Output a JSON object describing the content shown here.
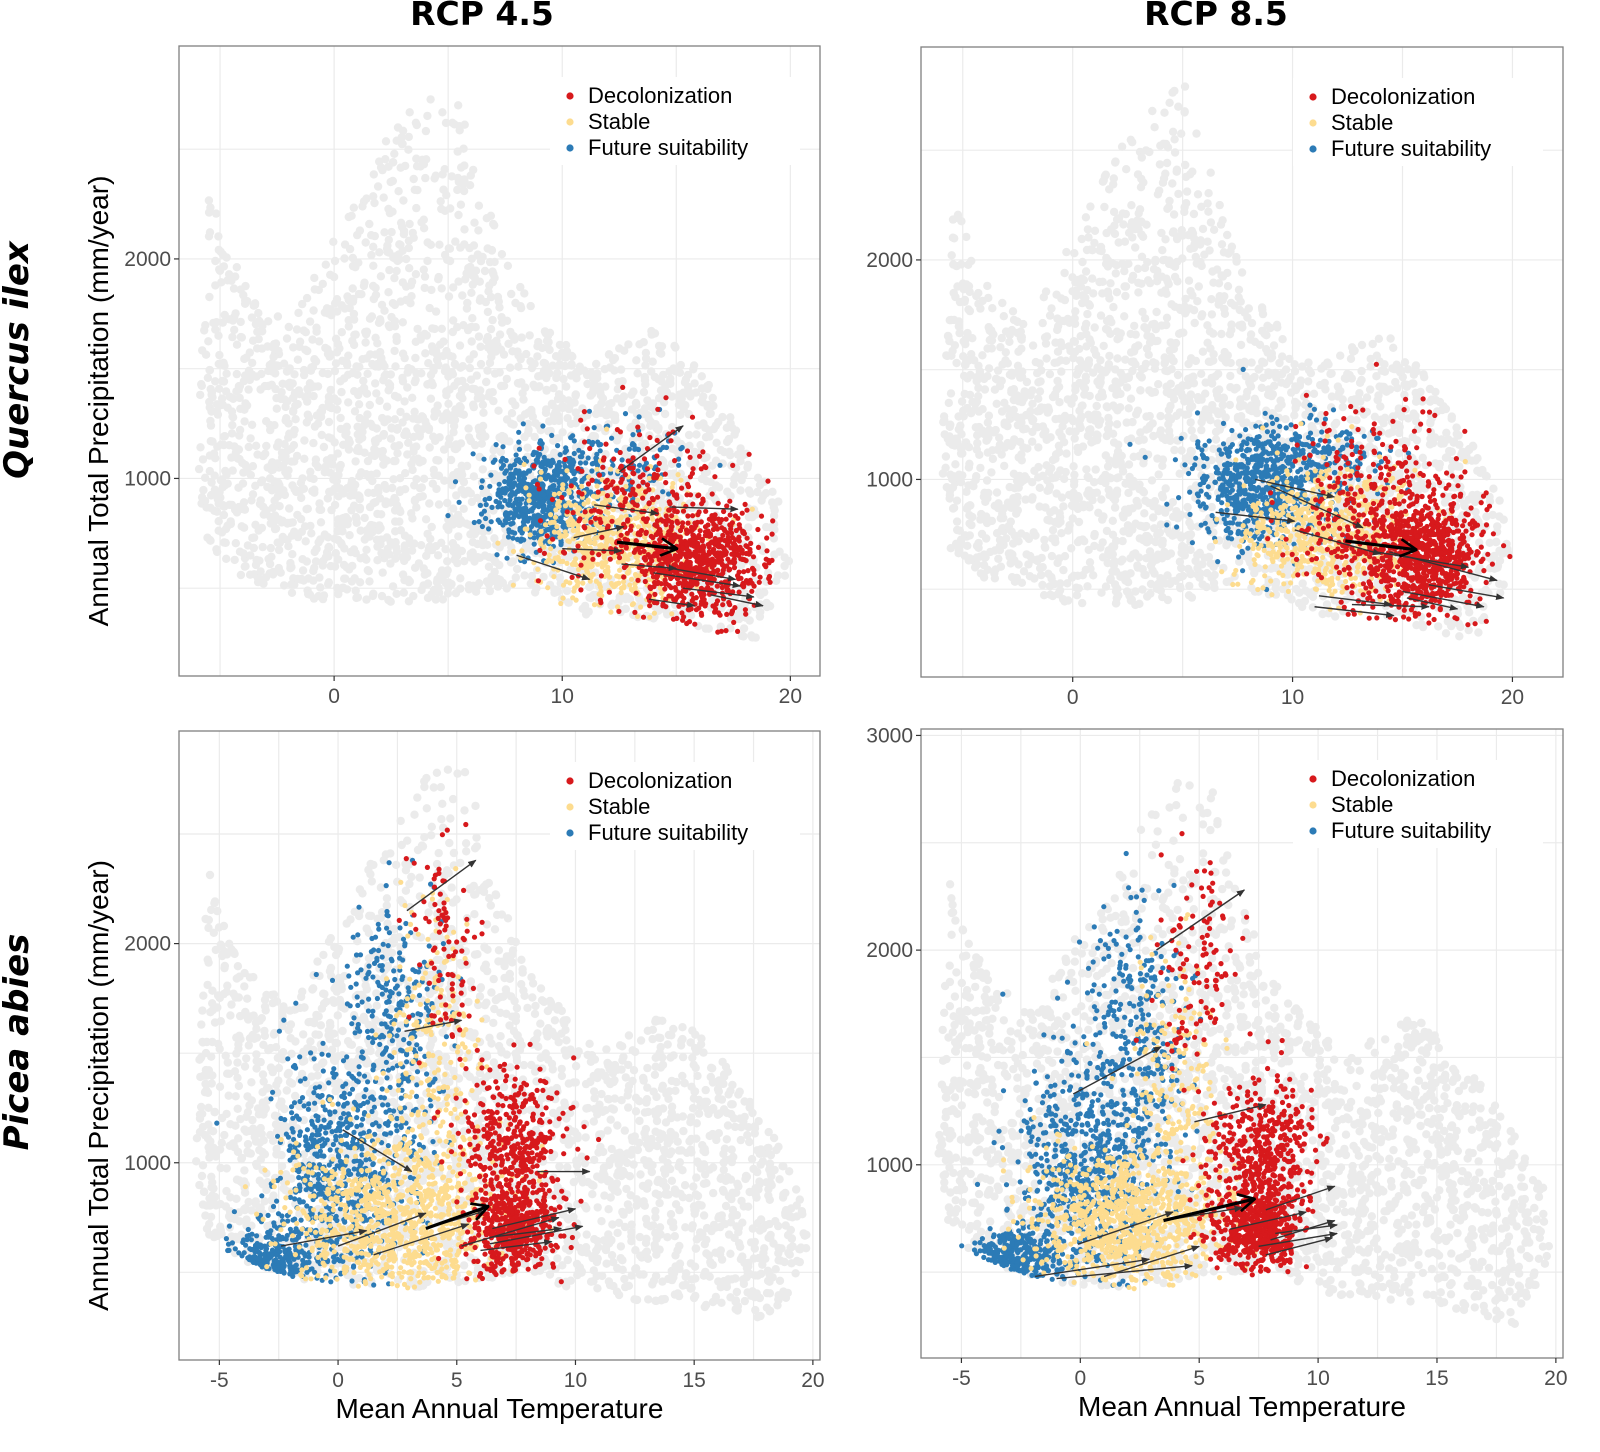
{
  "figure": {
    "column_titles": [
      "RCP 4.5",
      "RCP 8.5"
    ],
    "row_titles": [
      "Quercus ilex",
      "Picea abies"
    ],
    "x_axis_title": "Mean Annual Temperature",
    "y_axis_title": "Annual Total Precipitation (mm/year)"
  },
  "colors": {
    "background_points": "#ebebeb",
    "decolonization": "#d7191c",
    "stable": "#fddc8f",
    "future_suitability": "#2c7bb6",
    "arrow": "#333333",
    "mean_arrow": "#000000",
    "grid": "#ebebeb",
    "frame": "#7f7f7f"
  },
  "legend": {
    "placement": "top-right",
    "entries": [
      {
        "label": "Decolonization",
        "color_key": "decolonization"
      },
      {
        "label": "Stable",
        "color_key": "stable"
      },
      {
        "label": "Future suitability",
        "color_key": "future_suitability"
      }
    ]
  },
  "chart_data": [
    {
      "type": "scatter",
      "title": "RCP 4.5",
      "row": "Quercus ilex",
      "xlabel": "",
      "ylabel": "Annual Total Precipitation (mm/year)",
      "xlim": [
        -6.8,
        21.3
      ],
      "ylim": [
        100,
        2970
      ],
      "xticks": [
        0,
        10,
        20
      ],
      "yticks": [
        1000,
        2000
      ],
      "grid": true,
      "background_envelope": [
        [
          -5.5,
          2350
        ],
        [
          -4,
          1900
        ],
        [
          -2,
          1700
        ],
        [
          0,
          2100
        ],
        [
          2,
          2500
        ],
        [
          4,
          2800
        ],
        [
          5.5,
          2800
        ],
        [
          6.5,
          2300
        ],
        [
          8,
          1900
        ],
        [
          11,
          1500
        ],
        [
          14,
          1700
        ],
        [
          16,
          1500
        ],
        [
          18,
          1200
        ],
        [
          19.5,
          900
        ],
        [
          20,
          600
        ],
        [
          18.5,
          250
        ],
        [
          15,
          350
        ],
        [
          11,
          380
        ],
        [
          8,
          500
        ],
        [
          5,
          450
        ],
        [
          2,
          420
        ],
        [
          -1,
          450
        ],
        [
          -4,
          550
        ],
        [
          -5.5,
          650
        ],
        [
          -6,
          1000
        ],
        [
          -5.8,
          1600
        ]
      ],
      "clusters": [
        {
          "category": "decolonization",
          "center": [
            16,
            620
          ],
          "spread": [
            1.4,
            130
          ],
          "n": 700
        },
        {
          "category": "decolonization",
          "center": [
            13.5,
            850
          ],
          "spread": [
            2.0,
            210
          ],
          "n": 260
        },
        {
          "category": "stable",
          "center": [
            12.3,
            720
          ],
          "spread": [
            1.8,
            140
          ],
          "n": 650
        },
        {
          "category": "future_suitability",
          "center": [
            9.0,
            900
          ],
          "spread": [
            1.2,
            110
          ],
          "n": 550
        },
        {
          "category": "future_suitability",
          "center": [
            11.5,
            1050
          ],
          "spread": [
            1.8,
            110
          ],
          "n": 170
        }
      ],
      "shift_arrows": [
        [
          12.5,
          1030,
          15.3,
          1240
        ],
        [
          11.4,
          880,
          14.2,
          840
        ],
        [
          14.7,
          870,
          17.7,
          860
        ],
        [
          10.5,
          730,
          12.7,
          780
        ],
        [
          10,
          680,
          12.6,
          670
        ],
        [
          8.0,
          650,
          11.2,
          540
        ],
        [
          12.6,
          610,
          15.0,
          590
        ],
        [
          14.2,
          600,
          17.6,
          540
        ],
        [
          14.0,
          570,
          17.8,
          510
        ],
        [
          15.3,
          500,
          18.4,
          460
        ],
        [
          16.5,
          470,
          18.8,
          420
        ],
        [
          13.8,
          450,
          15.8,
          420
        ]
      ],
      "mean_arrow": [
        12.4,
        710,
        15.0,
        680
      ]
    },
    {
      "type": "scatter",
      "title": "RCP 8.5",
      "row": "Quercus ilex",
      "xlabel": "",
      "ylabel": "",
      "xlim": [
        -6.9,
        22.3
      ],
      "ylim": [
        100,
        2970
      ],
      "xticks": [
        0,
        10,
        20
      ],
      "yticks": [
        1000,
        2000
      ],
      "grid": true,
      "background_envelope": [
        [
          -5.5,
          2350
        ],
        [
          -4,
          1900
        ],
        [
          -2,
          1700
        ],
        [
          0,
          2100
        ],
        [
          2,
          2500
        ],
        [
          4,
          2800
        ],
        [
          5.5,
          2800
        ],
        [
          6.5,
          2300
        ],
        [
          8,
          1900
        ],
        [
          11,
          1500
        ],
        [
          14,
          1700
        ],
        [
          16,
          1500
        ],
        [
          18,
          1200
        ],
        [
          19.5,
          900
        ],
        [
          20,
          600
        ],
        [
          18.5,
          250
        ],
        [
          15,
          350
        ],
        [
          11,
          380
        ],
        [
          8,
          500
        ],
        [
          5,
          450
        ],
        [
          2,
          420
        ],
        [
          -1,
          450
        ],
        [
          -4,
          550
        ],
        [
          -5.5,
          650
        ],
        [
          -6,
          1000
        ],
        [
          -5.8,
          1600
        ]
      ],
      "clusters": [
        {
          "category": "decolonization",
          "center": [
            15.8,
            660
          ],
          "spread": [
            1.5,
            150
          ],
          "n": 800
        },
        {
          "category": "decolonization",
          "center": [
            13.5,
            900
          ],
          "spread": [
            2.0,
            220
          ],
          "n": 280
        },
        {
          "category": "stable",
          "center": [
            11.5,
            760
          ],
          "spread": [
            1.9,
            150
          ],
          "n": 650
        },
        {
          "category": "future_suitability",
          "center": [
            8.5,
            960
          ],
          "spread": [
            1.5,
            130
          ],
          "n": 620
        },
        {
          "category": "future_suitability",
          "center": [
            11.0,
            1080
          ],
          "spread": [
            1.8,
            100
          ],
          "n": 160
        }
      ],
      "shift_arrows": [
        [
          8.3,
          1000,
          11.9,
          920
        ],
        [
          9.0,
          970,
          13.2,
          780
        ],
        [
          6.5,
          850,
          10.1,
          810
        ],
        [
          10.1,
          770,
          14.0,
          660
        ],
        [
          13.8,
          670,
          18.0,
          600
        ],
        [
          14.4,
          670,
          19.3,
          540
        ],
        [
          16.2,
          520,
          19.6,
          460
        ],
        [
          15.0,
          490,
          18.7,
          420
        ],
        [
          11.2,
          470,
          14.5,
          430
        ],
        [
          12.7,
          430,
          16.2,
          420
        ],
        [
          15.2,
          460,
          17.5,
          410
        ],
        [
          11.0,
          420,
          14.6,
          380
        ]
      ],
      "mean_arrow": [
        12.4,
        720,
        15.6,
        680
      ]
    },
    {
      "type": "scatter",
      "title": "",
      "row": "Picea abies",
      "xlabel": "Mean Annual Temperature",
      "ylabel": "Annual Total Precipitation (mm/year)",
      "xlim": [
        -6.7,
        20.3
      ],
      "ylim": [
        100,
        2970
      ],
      "xticks": [
        -5,
        0,
        5,
        10,
        15,
        20
      ],
      "yticks": [
        1000,
        2000
      ],
      "grid": true,
      "background_envelope": [
        [
          -5.5,
          2350
        ],
        [
          -4,
          1900
        ],
        [
          -2,
          1700
        ],
        [
          0,
          2100
        ],
        [
          2,
          2500
        ],
        [
          4,
          2800
        ],
        [
          5.5,
          2800
        ],
        [
          6.5,
          2300
        ],
        [
          8,
          1900
        ],
        [
          11,
          1500
        ],
        [
          14,
          1700
        ],
        [
          16,
          1500
        ],
        [
          18,
          1200
        ],
        [
          19.5,
          900
        ],
        [
          19.8,
          600
        ],
        [
          18.5,
          250
        ],
        [
          15,
          350
        ],
        [
          11,
          380
        ],
        [
          8,
          500
        ],
        [
          5,
          450
        ],
        [
          2,
          420
        ],
        [
          -1,
          450
        ],
        [
          -4,
          550
        ],
        [
          -5.5,
          650
        ],
        [
          -6,
          1000
        ],
        [
          -5.8,
          1600
        ]
      ],
      "clusters": [
        {
          "category": "decolonization",
          "center": [
            7.4,
            700
          ],
          "spread": [
            0.9,
            100
          ],
          "n": 500
        },
        {
          "category": "decolonization",
          "center": [
            7.4,
            1080
          ],
          "spread": [
            1.1,
            160
          ],
          "n": 380
        },
        {
          "category": "decolonization",
          "center": [
            4.6,
            1900
          ],
          "spread": [
            0.8,
            280
          ],
          "n": 90
        },
        {
          "category": "stable",
          "center": [
            2.6,
            750
          ],
          "spread": [
            2.3,
            200
          ],
          "n": 1000
        },
        {
          "category": "stable",
          "center": [
            4.0,
            1500
          ],
          "spread": [
            1.0,
            300
          ],
          "n": 200
        },
        {
          "category": "future_suitability",
          "center": [
            -2.8,
            560
          ],
          "spread": [
            0.9,
            70
          ],
          "n": 350
        },
        {
          "category": "future_suitability",
          "center": [
            0.2,
            950
          ],
          "spread": [
            1.5,
            260
          ],
          "n": 650
        },
        {
          "category": "future_suitability",
          "center": [
            2.3,
            1650
          ],
          "spread": [
            1.1,
            300
          ],
          "n": 260
        }
      ],
      "shift_arrows": [
        [
          2.9,
          2150,
          5.8,
          2380
        ],
        [
          2.8,
          1600,
          5.2,
          1650
        ],
        [
          0.2,
          1150,
          3.1,
          960
        ],
        [
          -2.4,
          620,
          1.2,
          690
        ],
        [
          0.0,
          620,
          3.7,
          770
        ],
        [
          1.5,
          580,
          5.5,
          720
        ],
        [
          5.2,
          620,
          9.3,
          750
        ],
        [
          6.4,
          630,
          10.3,
          710
        ],
        [
          6.0,
          600,
          9.0,
          640
        ],
        [
          6.4,
          660,
          9.4,
          700
        ],
        [
          8.4,
          960,
          10.6,
          960
        ],
        [
          6.5,
          700,
          10.0,
          790
        ],
        [
          3.7,
          700,
          6.2,
          780
        ]
      ],
      "mean_arrow": [
        3.7,
        700,
        6.3,
        800
      ]
    },
    {
      "type": "scatter",
      "title": "",
      "row": "Picea abies",
      "xlabel": "Mean Annual Temperature",
      "ylabel": "",
      "xlim": [
        -6.7,
        20.3
      ],
      "ylim": [
        100,
        3030
      ],
      "xticks": [
        -5,
        0,
        5,
        10,
        15,
        20
      ],
      "yticks": [
        1000,
        2000,
        3000
      ],
      "grid": true,
      "background_envelope": [
        [
          -5.5,
          2350
        ],
        [
          -4,
          1900
        ],
        [
          -2,
          1700
        ],
        [
          0,
          2100
        ],
        [
          2,
          2500
        ],
        [
          4,
          2800
        ],
        [
          5.5,
          2800
        ],
        [
          6.5,
          2300
        ],
        [
          8,
          1900
        ],
        [
          11,
          1500
        ],
        [
          14,
          1700
        ],
        [
          16,
          1500
        ],
        [
          18,
          1200
        ],
        [
          19.5,
          900
        ],
        [
          19.8,
          600
        ],
        [
          18.5,
          250
        ],
        [
          15,
          350
        ],
        [
          11,
          380
        ],
        [
          8,
          500
        ],
        [
          5,
          450
        ],
        [
          2,
          420
        ],
        [
          -1,
          450
        ],
        [
          -4,
          550
        ],
        [
          -5.5,
          650
        ],
        [
          -6,
          1000
        ],
        [
          -5.8,
          1600
        ]
      ],
      "clusters": [
        {
          "category": "decolonization",
          "center": [
            7.4,
            700
          ],
          "spread": [
            0.9,
            100
          ],
          "n": 550
        },
        {
          "category": "decolonization",
          "center": [
            7.6,
            1080
          ],
          "spread": [
            1.1,
            160
          ],
          "n": 420
        },
        {
          "category": "decolonization",
          "center": [
            4.8,
            1900
          ],
          "spread": [
            0.9,
            280
          ],
          "n": 110
        },
        {
          "category": "stable",
          "center": [
            2.0,
            720
          ],
          "spread": [
            2.0,
            170
          ],
          "n": 950
        },
        {
          "category": "stable",
          "center": [
            4.0,
            1400
          ],
          "spread": [
            1.0,
            300
          ],
          "n": 180
        },
        {
          "category": "future_suitability",
          "center": [
            -2.8,
            560
          ],
          "spread": [
            0.9,
            70
          ],
          "n": 380
        },
        {
          "category": "future_suitability",
          "center": [
            0.3,
            950
          ],
          "spread": [
            1.5,
            270
          ],
          "n": 680
        },
        {
          "category": "future_suitability",
          "center": [
            2.3,
            1650
          ],
          "spread": [
            1.1,
            300
          ],
          "n": 280
        }
      ],
      "shift_arrows": [
        [
          3.2,
          2000,
          6.9,
          2280
        ],
        [
          -0.3,
          1330,
          3.4,
          1550
        ],
        [
          4.8,
          1200,
          7.8,
          1280
        ],
        [
          -0.1,
          630,
          3.9,
          780
        ],
        [
          3.5,
          740,
          6.8,
          800
        ],
        [
          6.3,
          700,
          9.5,
          780
        ],
        [
          7.8,
          790,
          10.7,
          900
        ],
        [
          8.2,
          680,
          10.8,
          720
        ],
        [
          8.0,
          650,
          10.7,
          740
        ],
        [
          -1.9,
          480,
          2.9,
          560
        ],
        [
          -1.0,
          470,
          4.7,
          530
        ],
        [
          1.0,
          480,
          5.0,
          620
        ],
        [
          7.5,
          620,
          10.8,
          680
        ],
        [
          7.8,
          580,
          10.6,
          660
        ]
      ],
      "mean_arrow": [
        3.5,
        740,
        7.3,
        840
      ]
    }
  ]
}
